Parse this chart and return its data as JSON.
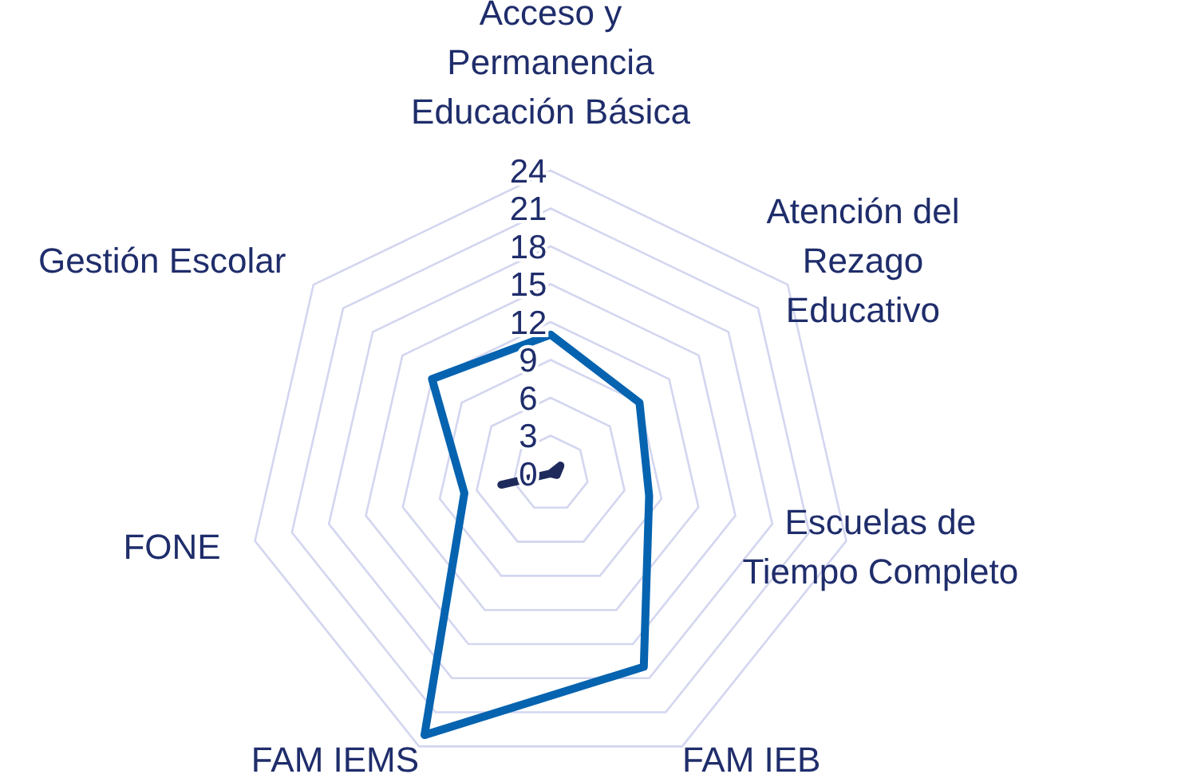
{
  "chart_data": {
    "type": "radar",
    "categories": [
      "Acceso y\nPermanencia\nEducación Básica",
      "Atención del\nRezago\nEducativo",
      "Escuelas de\nTiempo Completo",
      "FAM IEB",
      "FAM IEMS",
      "FONE",
      "Gestión Escolar"
    ],
    "ylim": [
      0,
      24
    ],
    "yticks": [
      0,
      3,
      6,
      9,
      12,
      15,
      18,
      21,
      24
    ],
    "grid": true,
    "series": [
      {
        "color": "#0563b0",
        "values": [
          11,
          9,
          8,
          17,
          23,
          7,
          12
        ]
      },
      {
        "color": "#1f2a5c",
        "values": [
          0,
          1,
          0.5,
          0,
          0,
          4,
          0
        ]
      }
    ]
  }
}
